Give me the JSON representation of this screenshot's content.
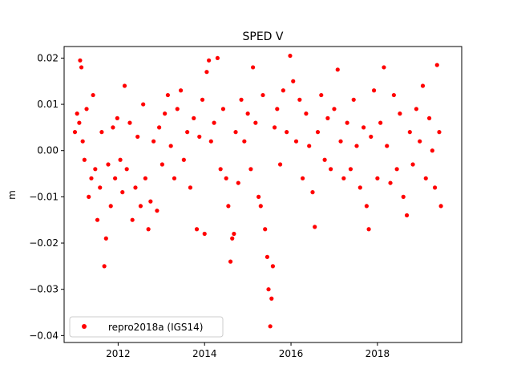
{
  "chart_data": {
    "type": "scatter",
    "title": "SPED V",
    "xlabel": "",
    "ylabel": "m",
    "xlim": [
      2010.75,
      2019.95
    ],
    "ylim": [
      -0.0415,
      0.0225
    ],
    "x_ticks": [
      2012,
      2014,
      2016,
      2018
    ],
    "x_tick_labels": [
      "2012",
      "2014",
      "2016",
      "2018"
    ],
    "y_ticks": [
      -0.04,
      -0.03,
      -0.02,
      -0.01,
      0.0,
      0.01,
      0.02
    ],
    "y_tick_labels": [
      "−0.04",
      "−0.03",
      "−0.02",
      "−0.01",
      "0.00",
      "0.01",
      "0.02"
    ],
    "grid": false,
    "legend_position": "lower-left",
    "series": [
      {
        "name": "repro2018a (IGS14)",
        "color": "#ff0000",
        "marker": "circle",
        "points": [
          [
            2011.0,
            0.004
          ],
          [
            2011.05,
            0.008
          ],
          [
            2011.1,
            0.006
          ],
          [
            2011.12,
            0.0195
          ],
          [
            2011.15,
            0.018
          ],
          [
            2011.18,
            0.002
          ],
          [
            2011.22,
            -0.002
          ],
          [
            2011.27,
            0.009
          ],
          [
            2011.32,
            -0.01
          ],
          [
            2011.38,
            -0.006
          ],
          [
            2011.42,
            0.012
          ],
          [
            2011.47,
            -0.004
          ],
          [
            2011.52,
            -0.015
          ],
          [
            2011.58,
            -0.008
          ],
          [
            2011.62,
            0.004
          ],
          [
            2011.68,
            -0.025
          ],
          [
            2011.72,
            -0.019
          ],
          [
            2011.77,
            -0.003
          ],
          [
            2011.83,
            -0.012
          ],
          [
            2011.88,
            0.005
          ],
          [
            2011.93,
            -0.006
          ],
          [
            2011.98,
            0.007
          ],
          [
            2012.05,
            -0.002
          ],
          [
            2012.1,
            -0.009
          ],
          [
            2012.15,
            0.014
          ],
          [
            2012.2,
            -0.004
          ],
          [
            2012.27,
            0.006
          ],
          [
            2012.33,
            -0.015
          ],
          [
            2012.4,
            -0.008
          ],
          [
            2012.45,
            0.003
          ],
          [
            2012.52,
            -0.012
          ],
          [
            2012.58,
            0.01
          ],
          [
            2012.63,
            -0.006
          ],
          [
            2012.7,
            -0.017
          ],
          [
            2012.75,
            -0.011
          ],
          [
            2012.82,
            0.002
          ],
          [
            2012.9,
            -0.013
          ],
          [
            2012.95,
            0.005
          ],
          [
            2013.02,
            -0.003
          ],
          [
            2013.08,
            0.008
          ],
          [
            2013.15,
            0.012
          ],
          [
            2013.22,
            0.001
          ],
          [
            2013.3,
            -0.006
          ],
          [
            2013.37,
            0.009
          ],
          [
            2013.45,
            0.013
          ],
          [
            2013.52,
            -0.002
          ],
          [
            2013.6,
            0.004
          ],
          [
            2013.67,
            -0.008
          ],
          [
            2013.75,
            0.007
          ],
          [
            2013.82,
            -0.017
          ],
          [
            2013.88,
            0.003
          ],
          [
            2013.95,
            0.011
          ],
          [
            2014.0,
            -0.018
          ],
          [
            2014.05,
            0.017
          ],
          [
            2014.1,
            0.0195
          ],
          [
            2014.15,
            0.002
          ],
          [
            2014.22,
            0.006
          ],
          [
            2014.3,
            0.02
          ],
          [
            2014.37,
            -0.004
          ],
          [
            2014.43,
            0.009
          ],
          [
            2014.5,
            -0.006
          ],
          [
            2014.55,
            -0.012
          ],
          [
            2014.6,
            -0.024
          ],
          [
            2014.64,
            -0.019
          ],
          [
            2014.68,
            -0.018
          ],
          [
            2014.72,
            0.004
          ],
          [
            2014.78,
            -0.007
          ],
          [
            2014.85,
            0.011
          ],
          [
            2014.92,
            0.002
          ],
          [
            2015.0,
            0.008
          ],
          [
            2015.07,
            -0.004
          ],
          [
            2015.12,
            0.018
          ],
          [
            2015.18,
            0.006
          ],
          [
            2015.25,
            -0.01
          ],
          [
            2015.3,
            -0.012
          ],
          [
            2015.35,
            0.012
          ],
          [
            2015.4,
            -0.017
          ],
          [
            2015.45,
            -0.023
          ],
          [
            2015.48,
            -0.03
          ],
          [
            2015.52,
            -0.038
          ],
          [
            2015.55,
            -0.032
          ],
          [
            2015.58,
            -0.025
          ],
          [
            2015.62,
            0.005
          ],
          [
            2015.68,
            0.009
          ],
          [
            2015.75,
            -0.003
          ],
          [
            2015.82,
            0.013
          ],
          [
            2015.9,
            0.004
          ],
          [
            2015.98,
            0.0205
          ],
          [
            2016.05,
            0.015
          ],
          [
            2016.12,
            0.002
          ],
          [
            2016.2,
            0.011
          ],
          [
            2016.27,
            -0.006
          ],
          [
            2016.35,
            0.008
          ],
          [
            2016.42,
            0.001
          ],
          [
            2016.5,
            -0.009
          ],
          [
            2016.55,
            -0.0165
          ],
          [
            2016.62,
            0.004
          ],
          [
            2016.7,
            0.012
          ],
          [
            2016.78,
            -0.002
          ],
          [
            2016.85,
            0.007
          ],
          [
            2016.92,
            -0.004
          ],
          [
            2017.0,
            0.009
          ],
          [
            2017.08,
            0.0175
          ],
          [
            2017.15,
            0.002
          ],
          [
            2017.22,
            -0.006
          ],
          [
            2017.3,
            0.006
          ],
          [
            2017.38,
            -0.004
          ],
          [
            2017.45,
            0.011
          ],
          [
            2017.52,
            0.001
          ],
          [
            2017.6,
            -0.008
          ],
          [
            2017.68,
            0.005
          ],
          [
            2017.75,
            -0.012
          ],
          [
            2017.8,
            -0.017
          ],
          [
            2017.85,
            0.003
          ],
          [
            2017.92,
            0.013
          ],
          [
            2018.0,
            -0.006
          ],
          [
            2018.07,
            0.006
          ],
          [
            2018.15,
            0.018
          ],
          [
            2018.22,
            0.001
          ],
          [
            2018.3,
            -0.007
          ],
          [
            2018.38,
            0.012
          ],
          [
            2018.45,
            -0.004
          ],
          [
            2018.52,
            0.008
          ],
          [
            2018.6,
            -0.01
          ],
          [
            2018.68,
            -0.014
          ],
          [
            2018.75,
            0.004
          ],
          [
            2018.82,
            -0.003
          ],
          [
            2018.9,
            0.009
          ],
          [
            2018.98,
            0.002
          ],
          [
            2019.05,
            0.014
          ],
          [
            2019.12,
            -0.006
          ],
          [
            2019.2,
            0.007
          ],
          [
            2019.27,
            0.0
          ],
          [
            2019.33,
            -0.008
          ],
          [
            2019.38,
            0.0185
          ],
          [
            2019.43,
            0.004
          ],
          [
            2019.47,
            -0.012
          ]
        ]
      }
    ]
  }
}
